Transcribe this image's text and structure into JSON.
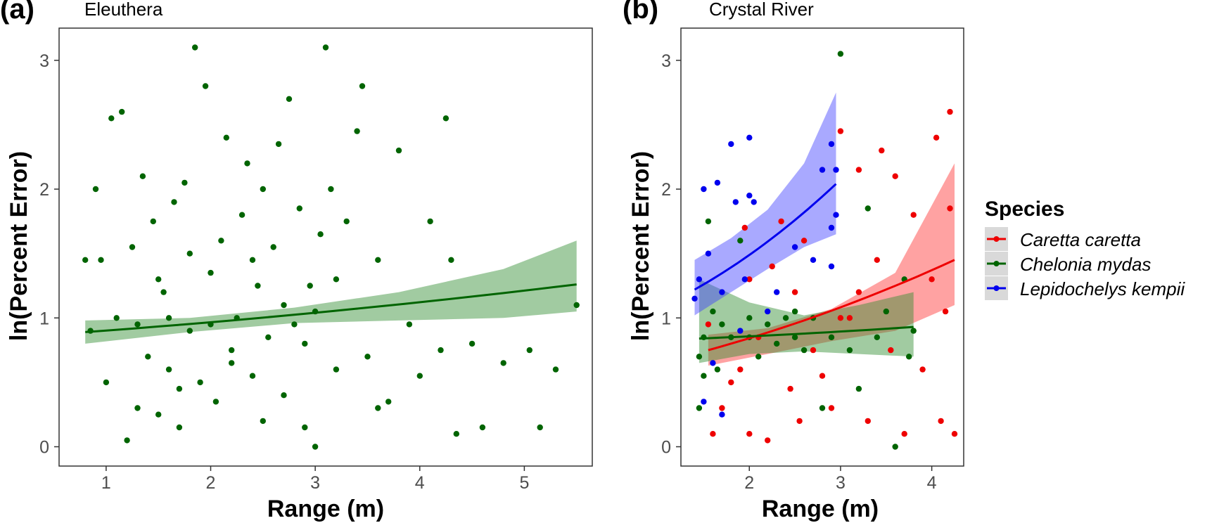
{
  "colors": {
    "caretta": "#ee0000",
    "chelonia": "#006400",
    "lepidochelys": "#0000ee",
    "ribbon_chelonia": "#2e8b2e",
    "ribbon_caretta": "#ff3030",
    "ribbon_lepido": "#4040ff",
    "legend_key_bg": "#d9d9d9",
    "tick_text": "#4d4d4d"
  },
  "legend": {
    "title": "Species",
    "items": [
      {
        "key": "caretta",
        "label": "Caretta caretta"
      },
      {
        "key": "chelonia",
        "label": "Chelonia mydas"
      },
      {
        "key": "lepidochelys",
        "label": "Lepidochelys kempii"
      }
    ]
  },
  "chart_data": [
    {
      "type": "scatter",
      "panel_label": "(a)",
      "title": "Eleuthera",
      "xlabel": "Range (m)",
      "ylabel": "ln(Percent Error)",
      "xlim": [
        0.55,
        5.65
      ],
      "ylim": [
        -0.15,
        3.25
      ],
      "xticks": [
        "1",
        "2",
        "3",
        "4",
        "5"
      ],
      "yticks": [
        "0",
        "1",
        "2",
        "3"
      ],
      "grid": false,
      "series": [
        {
          "species": "chelonia",
          "points": [
            [
              0.8,
              1.45
            ],
            [
              0.85,
              0.9
            ],
            [
              0.9,
              2.0
            ],
            [
              0.95,
              1.45
            ],
            [
              1.0,
              0.5
            ],
            [
              1.05,
              2.55
            ],
            [
              1.1,
              1.0
            ],
            [
              1.15,
              2.6
            ],
            [
              1.2,
              0.05
            ],
            [
              1.25,
              1.55
            ],
            [
              1.3,
              0.3
            ],
            [
              1.35,
              2.1
            ],
            [
              1.4,
              0.7
            ],
            [
              1.45,
              1.75
            ],
            [
              1.5,
              0.25
            ],
            [
              1.55,
              1.2
            ],
            [
              1.6,
              0.6
            ],
            [
              1.65,
              1.9
            ],
            [
              1.7,
              0.15
            ],
            [
              1.75,
              2.05
            ],
            [
              1.8,
              0.9
            ],
            [
              1.85,
              3.1
            ],
            [
              1.9,
              0.5
            ],
            [
              1.95,
              2.8
            ],
            [
              2.0,
              1.35
            ],
            [
              2.05,
              0.35
            ],
            [
              2.1,
              1.6
            ],
            [
              2.15,
              2.4
            ],
            [
              2.2,
              0.75
            ],
            [
              2.25,
              1.0
            ],
            [
              2.3,
              1.8
            ],
            [
              2.35,
              2.2
            ],
            [
              2.4,
              0.55
            ],
            [
              2.45,
              1.25
            ],
            [
              2.5,
              2.0
            ],
            [
              2.55,
              0.85
            ],
            [
              2.6,
              1.55
            ],
            [
              2.65,
              2.35
            ],
            [
              2.7,
              0.4
            ],
            [
              2.75,
              2.7
            ],
            [
              2.8,
              0.95
            ],
            [
              2.85,
              1.85
            ],
            [
              2.9,
              0.15
            ],
            [
              2.95,
              1.25
            ],
            [
              3.0,
              0.0
            ],
            [
              3.05,
              1.65
            ],
            [
              3.1,
              3.1
            ],
            [
              3.15,
              2.0
            ],
            [
              3.2,
              0.6
            ],
            [
              3.3,
              1.75
            ],
            [
              3.4,
              2.45
            ],
            [
              3.45,
              2.8
            ],
            [
              3.5,
              0.7
            ],
            [
              3.6,
              1.45
            ],
            [
              3.7,
              0.35
            ],
            [
              3.8,
              2.3
            ],
            [
              3.9,
              0.95
            ],
            [
              4.0,
              0.55
            ],
            [
              4.1,
              1.75
            ],
            [
              4.2,
              0.75
            ],
            [
              4.25,
              2.55
            ],
            [
              4.3,
              1.45
            ],
            [
              4.35,
              0.1
            ],
            [
              4.5,
              0.8
            ],
            [
              4.6,
              0.15
            ],
            [
              4.8,
              0.65
            ],
            [
              5.05,
              0.75
            ],
            [
              5.15,
              0.15
            ],
            [
              5.3,
              0.6
            ],
            [
              5.5,
              1.1
            ],
            [
              1.6,
              1.0
            ],
            [
              1.7,
              0.45
            ],
            [
              2.0,
              0.95
            ],
            [
              2.2,
              0.65
            ],
            [
              2.5,
              0.2
            ],
            [
              2.7,
              1.1
            ],
            [
              3.2,
              1.3
            ],
            [
              3.6,
              0.3
            ],
            [
              1.3,
              0.95
            ],
            [
              1.5,
              1.3
            ],
            [
              1.8,
              1.5
            ],
            [
              2.4,
              1.45
            ],
            [
              2.9,
              0.8
            ],
            [
              3.0,
              1.05
            ]
          ],
          "trend": {
            "x": [
              0.8,
              5.5
            ],
            "y": [
              0.89,
              1.26
            ]
          },
          "ribbon": {
            "x": [
              0.8,
              1.8,
              2.8,
              3.8,
              4.8,
              5.5
            ],
            "lower": [
              0.8,
              0.89,
              0.96,
              0.98,
              1.0,
              1.05
            ],
            "upper": [
              0.98,
              1.0,
              1.08,
              1.2,
              1.38,
              1.6
            ]
          }
        }
      ]
    },
    {
      "type": "scatter",
      "panel_label": "(b)",
      "title": "Crystal River",
      "xlabel": "Range (m)",
      "ylabel": "ln(Percent Error)",
      "xlim": [
        1.25,
        4.35
      ],
      "ylim": [
        -0.15,
        3.25
      ],
      "xticks": [
        "2",
        "3",
        "4"
      ],
      "yticks": [
        "0",
        "1",
        "2",
        "3"
      ],
      "grid": false,
      "series": [
        {
          "species": "caretta",
          "points": [
            [
              1.55,
              0.95
            ],
            [
              1.6,
              0.1
            ],
            [
              1.7,
              0.3
            ],
            [
              1.8,
              0.5
            ],
            [
              1.9,
              0.6
            ],
            [
              1.95,
              1.7
            ],
            [
              2.0,
              0.1
            ],
            [
              2.1,
              0.85
            ],
            [
              2.2,
              0.05
            ],
            [
              2.25,
              1.4
            ],
            [
              2.35,
              1.75
            ],
            [
              2.45,
              0.45
            ],
            [
              2.55,
              0.2
            ],
            [
              2.6,
              1.6
            ],
            [
              2.7,
              0.75
            ],
            [
              2.8,
              0.55
            ],
            [
              2.9,
              0.3
            ],
            [
              3.0,
              2.45
            ],
            [
              3.1,
              1.0
            ],
            [
              3.2,
              2.15
            ],
            [
              3.3,
              0.2
            ],
            [
              3.4,
              1.45
            ],
            [
              3.45,
              2.3
            ],
            [
              3.55,
              0.75
            ],
            [
              3.6,
              2.1
            ],
            [
              3.7,
              0.1
            ],
            [
              3.8,
              1.8
            ],
            [
              3.9,
              0.6
            ],
            [
              4.0,
              1.3
            ],
            [
              4.05,
              2.4
            ],
            [
              4.1,
              0.2
            ],
            [
              4.15,
              1.05
            ],
            [
              4.2,
              2.6
            ],
            [
              4.25,
              0.1
            ],
            [
              4.2,
              1.85
            ],
            [
              3.0,
              1.0
            ],
            [
              3.2,
              1.2
            ],
            [
              2.5,
              1.2
            ],
            [
              2.0,
              1.3
            ]
          ],
          "trend": {
            "x": [
              1.55,
              4.25
            ],
            "y": [
              0.75,
              1.45
            ]
          },
          "ribbon": {
            "x": [
              1.55,
              2.2,
              2.9,
              3.6,
              4.25
            ],
            "lower": [
              0.63,
              0.72,
              0.82,
              0.9,
              1.1
            ],
            "upper": [
              0.87,
              0.92,
              1.07,
              1.35,
              2.2
            ]
          }
        },
        {
          "species": "chelonia",
          "points": [
            [
              1.45,
              0.3
            ],
            [
              1.5,
              0.85
            ],
            [
              1.55,
              1.75
            ],
            [
              1.6,
              1.05
            ],
            [
              1.65,
              0.6
            ],
            [
              1.7,
              0.95
            ],
            [
              1.8,
              0.85
            ],
            [
              1.9,
              1.6
            ],
            [
              2.0,
              0.85
            ],
            [
              2.1,
              0.7
            ],
            [
              2.2,
              0.95
            ],
            [
              2.3,
              0.8
            ],
            [
              2.4,
              1.0
            ],
            [
              2.5,
              0.85
            ],
            [
              2.6,
              0.75
            ],
            [
              2.7,
              1.0
            ],
            [
              2.8,
              0.3
            ],
            [
              2.9,
              0.85
            ],
            [
              3.0,
              3.05
            ],
            [
              3.1,
              0.75
            ],
            [
              3.2,
              0.45
            ],
            [
              3.3,
              1.85
            ],
            [
              3.4,
              0.85
            ],
            [
              3.5,
              1.05
            ],
            [
              3.6,
              0.0
            ],
            [
              3.7,
              1.3
            ],
            [
              3.75,
              0.7
            ],
            [
              3.8,
              0.9
            ],
            [
              1.45,
              0.7
            ],
            [
              1.5,
              0.55
            ],
            [
              2.0,
              1.0
            ],
            [
              2.5,
              1.05
            ]
          ],
          "trend": {
            "x": [
              1.45,
              3.8
            ],
            "y": [
              0.84,
              0.93
            ]
          },
          "ribbon": {
            "x": [
              1.45,
              2.0,
              2.6,
              3.2,
              3.8
            ],
            "lower": [
              0.65,
              0.72,
              0.74,
              0.72,
              0.7
            ],
            "upper": [
              1.3,
              1.12,
              1.02,
              1.1,
              1.2
            ]
          }
        },
        {
          "species": "lepidochelys",
          "points": [
            [
              1.4,
              1.15
            ],
            [
              1.45,
              1.3
            ],
            [
              1.5,
              2.0
            ],
            [
              1.55,
              1.5
            ],
            [
              1.6,
              0.65
            ],
            [
              1.65,
              2.05
            ],
            [
              1.7,
              1.2
            ],
            [
              1.8,
              2.35
            ],
            [
              1.85,
              1.9
            ],
            [
              1.9,
              0.9
            ],
            [
              1.95,
              1.3
            ],
            [
              2.0,
              2.4
            ],
            [
              2.05,
              1.9
            ],
            [
              2.2,
              1.05
            ],
            [
              2.3,
              1.2
            ],
            [
              2.5,
              1.55
            ],
            [
              2.7,
              1.45
            ],
            [
              2.8,
              2.15
            ],
            [
              2.9,
              2.35
            ],
            [
              2.95,
              1.8
            ],
            [
              2.9,
              1.4
            ],
            [
              2.95,
              2.15
            ],
            [
              2.9,
              1.7
            ],
            [
              1.5,
              0.35
            ],
            [
              1.7,
              0.25
            ],
            [
              2.0,
              1.95
            ]
          ],
          "trend": {
            "x": [
              1.4,
              2.95
            ],
            "y": [
              1.22,
              2.04
            ]
          },
          "ribbon": {
            "x": [
              1.4,
              1.8,
              2.2,
              2.6,
              2.95
            ],
            "lower": [
              1.02,
              1.2,
              1.38,
              1.55,
              1.65
            ],
            "upper": [
              1.45,
              1.62,
              1.84,
              2.2,
              2.75
            ]
          }
        }
      ]
    }
  ]
}
